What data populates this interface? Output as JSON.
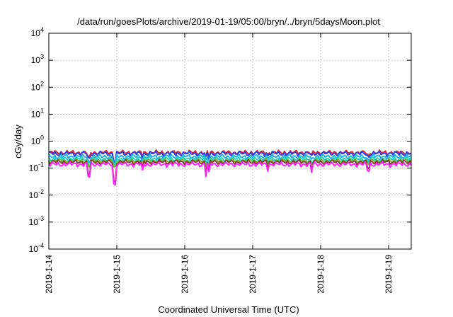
{
  "chart_data": {
    "type": "line",
    "title": "/data/run/goesPlots/archive/2019-01-19/05:00/bryn/../bryn/5daysMoon.plot",
    "xlabel": "Coordinated Universal Time (UTC)",
    "ylabel": "cGy/day",
    "yscale": "log",
    "ylim": [
      0.0001,
      10000
    ],
    "y_ticks": [
      {
        "value": 0.0001,
        "base": "10",
        "exp": "-4"
      },
      {
        "value": 0.001,
        "base": "10",
        "exp": "-3"
      },
      {
        "value": 0.01,
        "base": "10",
        "exp": "-2"
      },
      {
        "value": 0.1,
        "base": "10",
        "exp": "-1"
      },
      {
        "value": 1,
        "base": "10",
        "exp": "0"
      },
      {
        "value": 10,
        "base": "10",
        "exp": "1"
      },
      {
        "value": 100,
        "base": "10",
        "exp": "2"
      },
      {
        "value": 1000,
        "base": "10",
        "exp": "3"
      },
      {
        "value": 10000,
        "base": "10",
        "exp": "4"
      }
    ],
    "xlim": [
      "2019-01-14 00:00",
      "2019-01-19 08:00"
    ],
    "x_ticks": [
      "2019-1-14",
      "2019-1-15",
      "2019-1-16",
      "2019-1-17",
      "2019-1-18",
      "2019-1-19"
    ],
    "grid": true,
    "series": [
      {
        "color": "#e8212a",
        "base": 0.38
      },
      {
        "color": "#2a3fe8",
        "base": 0.35
      },
      {
        "color": "#1cb4f0",
        "base": 0.27
      },
      {
        "color": "#22d3c8",
        "base": 0.22
      },
      {
        "color": "#6dbf3a",
        "base": 0.19
      },
      {
        "color": "#8a3a2a",
        "base": 0.17
      },
      {
        "color": "#ff20ff",
        "base": 0.14
      }
    ],
    "dips": [
      {
        "day": 0.59,
        "factor": 0.35
      },
      {
        "day": 0.97,
        "factor": 0.18
      },
      {
        "day": 1.38,
        "factor": 0.55
      },
      {
        "day": 2.31,
        "factor": 0.4
      },
      {
        "day": 2.36,
        "factor": 0.45
      },
      {
        "day": 3.22,
        "factor": 0.7
      },
      {
        "day": 3.87,
        "factor": 0.5
      },
      {
        "day": 4.7,
        "factor": 0.6
      }
    ]
  }
}
